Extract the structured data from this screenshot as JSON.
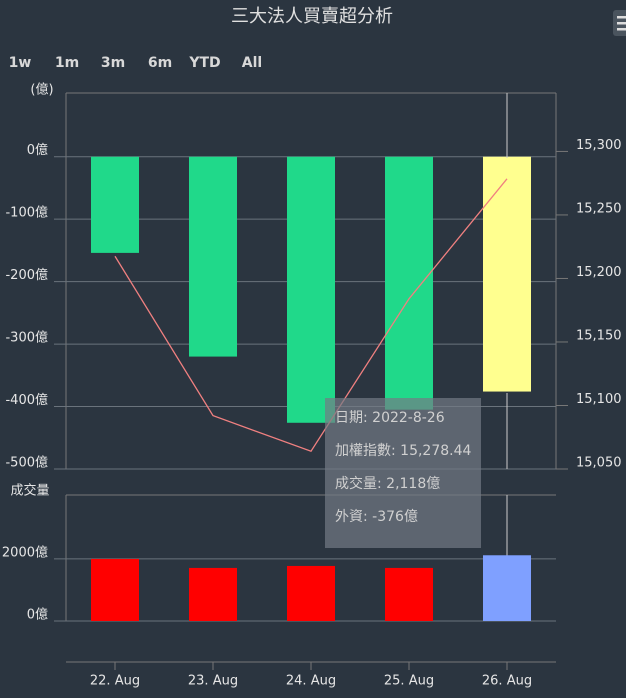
{
  "header": {
    "title": "三大法人買賣超分析",
    "range_buttons": [
      "1w",
      "1m",
      "3m",
      "6m",
      "YTD",
      "All"
    ]
  },
  "chart_data": [
    {
      "type": "bar",
      "y_label": "(億)",
      "series": [
        {
          "color": "#20d98a",
          "hover_color": "#ffff8f",
          "values": [
            -154,
            -320,
            -426,
            -405,
            -376
          ]
        },
        {
          "type": "line",
          "axis": "y2",
          "color": "#f08080",
          "values": [
            15217.5,
            15092,
            15064,
            15184,
            15278.44
          ]
        }
      ],
      "ylim": [
        -500,
        102
      ],
      "yticks": [
        {
          "value": 0,
          "label": "0億"
        },
        {
          "value": -100,
          "label": "-100億"
        },
        {
          "value": -200,
          "label": "-200億"
        },
        {
          "value": -300,
          "label": "-300億"
        },
        {
          "value": -400,
          "label": "-400億"
        },
        {
          "value": -500,
          "label": "-500億"
        }
      ],
      "y2lim": [
        15050,
        15346
      ],
      "y2ticks": [
        {
          "value": 15300,
          "label": "15,300"
        },
        {
          "value": 15250,
          "label": "15,250"
        },
        {
          "value": 15200,
          "label": "15,200"
        },
        {
          "value": 15150,
          "label": "15,150"
        },
        {
          "value": 15100,
          "label": "15,100"
        },
        {
          "value": 15050,
          "label": "15,050"
        }
      ],
      "hover_index": 4
    },
    {
      "type": "bar",
      "y_label": "成交量",
      "categories": [
        "22. Aug",
        "23. Aug",
        "24. Aug",
        "25. Aug",
        "26. Aug"
      ],
      "values": [
        2000,
        1710,
        1774,
        1710,
        2118
      ],
      "color": "#ff0000",
      "hover_color": "#7fa0ff",
      "ylim": [
        0,
        4060
      ],
      "yticks": [
        {
          "value": 0,
          "label": "0億"
        },
        {
          "value": 2000,
          "label": "2000億"
        }
      ],
      "hover_index": 4
    }
  ],
  "tooltip": [
    "日期: 2022-8-26",
    "加權指數: 15,278.44",
    "成交量: 2,118億",
    "外資: -376億"
  ]
}
